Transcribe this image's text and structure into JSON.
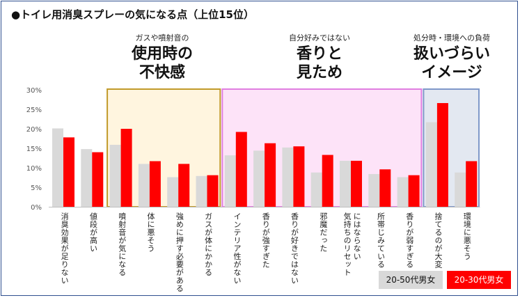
{
  "title": "●トイレ用消臭スプレーの気になる点（上位15位）",
  "groups": [
    {
      "sub": "ガスや噴射音の",
      "head1": "使用時の",
      "head2": "不快感",
      "border": "#c19a2a",
      "fill": "#fff5df"
    },
    {
      "sub": "自分好みではない",
      "head1": "香りと",
      "head2": "見ため",
      "border": "#e07ee0",
      "fill": "#fde3f8"
    },
    {
      "sub": "処分時・環境への負荷",
      "head1": "扱いづらい",
      "head2": "イメージ",
      "border": "#7f98c9",
      "fill": "#e3e8f1"
    }
  ],
  "legend": [
    {
      "label": "20-50代男女",
      "bg": "#d9d9d9",
      "fg": "#111111"
    },
    {
      "label": "20-30代男女",
      "bg": "#ff0000",
      "fg": "#ffffff"
    }
  ],
  "chart_data": {
    "type": "bar",
    "categories": [
      "消臭効果が足りない",
      "値段が高い",
      "噴射音が気になる",
      "体に悪そう",
      "強めに押す必要がある",
      "ガスが体にかかる",
      "インテリア性がない",
      "香りが強すぎた",
      "香りが好きではない",
      "邪魔だった",
      "気持ちのリセットにはならない",
      "所帯じみている",
      "香りが弱すぎる",
      "捨てるのが大変",
      "環境に悪そう"
    ],
    "series": [
      {
        "name": "20-50代男女",
        "color": "#d9d9d9",
        "values": [
          20.1,
          14.8,
          15.9,
          11.0,
          7.6,
          7.9,
          13.2,
          14.4,
          15.2,
          8.8,
          11.8,
          8.4,
          7.6,
          21.7,
          8.8
        ]
      },
      {
        "name": "20-30代男女",
        "color": "#ff0000",
        "values": [
          17.8,
          14.0,
          20.0,
          11.7,
          11.0,
          8.1,
          19.2,
          16.3,
          15.5,
          13.3,
          11.8,
          9.6,
          8.1,
          26.6,
          11.7
        ]
      }
    ],
    "ylim": [
      0,
      30
    ],
    "yticks": [
      "0%",
      "5%",
      "10%",
      "15%",
      "20%",
      "25%",
      "30%"
    ],
    "grid": false,
    "legend_position": "bottom-right",
    "highlight_ranges": [
      [
        2,
        5
      ],
      [
        6,
        12
      ],
      [
        13,
        14
      ]
    ]
  }
}
